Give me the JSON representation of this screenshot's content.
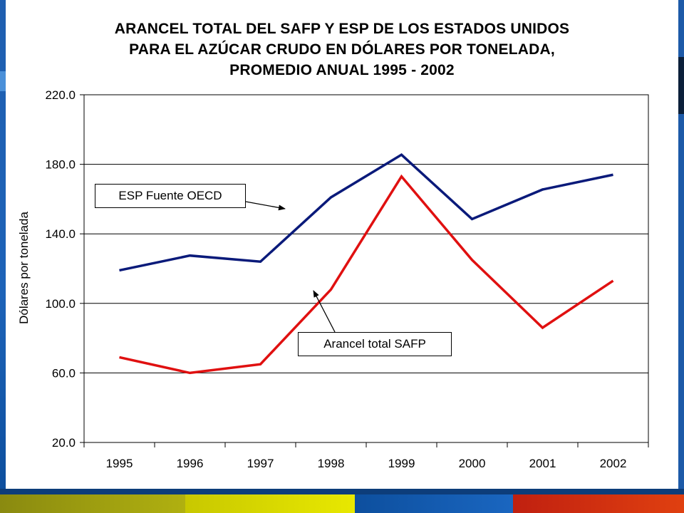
{
  "chart_data": {
    "type": "line",
    "title_lines": [
      "ARANCEL TOTAL DEL SAFP Y ESP DE LOS ESTADOS UNIDOS",
      "PARA EL AZÚCAR CRUDO EN DÓLARES POR TONELADA,",
      "PROMEDIO ANUAL 1995 - 2002"
    ],
    "ylabel": "Dólares por tonelada",
    "xlabel": "",
    "categories": [
      "1995",
      "1996",
      "1997",
      "1998",
      "1999",
      "2000",
      "2001",
      "2002"
    ],
    "ylim": [
      20.0,
      220.0
    ],
    "yticks": [
      "20.0",
      "60.0",
      "100.0",
      "140.0",
      "180.0",
      "220.0"
    ],
    "grid": true,
    "series": [
      {
        "name": "ESP Fuente OECD",
        "color": "#0a1a7a",
        "values": [
          119.0,
          127.5,
          124.0,
          161.0,
          185.5,
          148.5,
          165.5,
          174.0
        ]
      },
      {
        "name": "Arancel total SAFP",
        "color": "#e01010",
        "values": [
          69.0,
          60.0,
          65.0,
          108.0,
          173.0,
          125.0,
          86.0,
          113.0
        ]
      }
    ]
  },
  "colors": {
    "frame_blue": "#1d5aa8",
    "strip": [
      "#8a8a10",
      "#e8e800",
      "#0d4f9e",
      "#c02010"
    ]
  }
}
